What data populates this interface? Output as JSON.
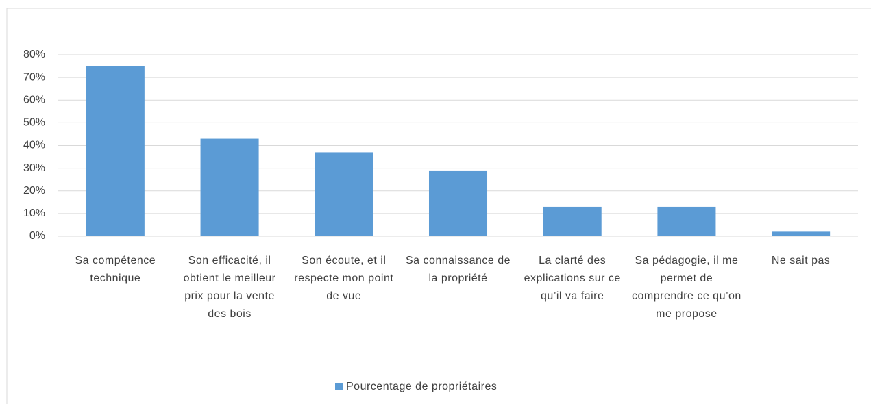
{
  "chart_data": {
    "type": "bar",
    "categories": [
      "Sa compétence technique",
      "Son efficacité, il obtient le meilleur prix pour la vente des bois",
      "Son écoute, et il respecte mon point de vue",
      "Sa connaissance de la propriété",
      "La clarté des explications sur ce qu’il va faire",
      "Sa pédagogie, il me permet de comprendre ce qu’on me propose",
      "Ne sait pas"
    ],
    "series": [
      {
        "name": "Pourcentage de propriétaires",
        "color": "#5b9bd5",
        "values": [
          75,
          43,
          37,
          29,
          13,
          13,
          2
        ]
      }
    ],
    "ylim": [
      0,
      80
    ],
    "yticks": [
      {
        "value": 0,
        "label": "0%"
      },
      {
        "value": 10,
        "label": "10%"
      },
      {
        "value": 20,
        "label": "20%"
      },
      {
        "value": 30,
        "label": "30%"
      },
      {
        "value": 40,
        "label": "40%"
      },
      {
        "value": 50,
        "label": "50%"
      },
      {
        "value": 60,
        "label": "60%"
      },
      {
        "value": 70,
        "label": "70%"
      },
      {
        "value": 80,
        "label": "80%"
      }
    ],
    "grid": true,
    "legend": "bottom"
  }
}
